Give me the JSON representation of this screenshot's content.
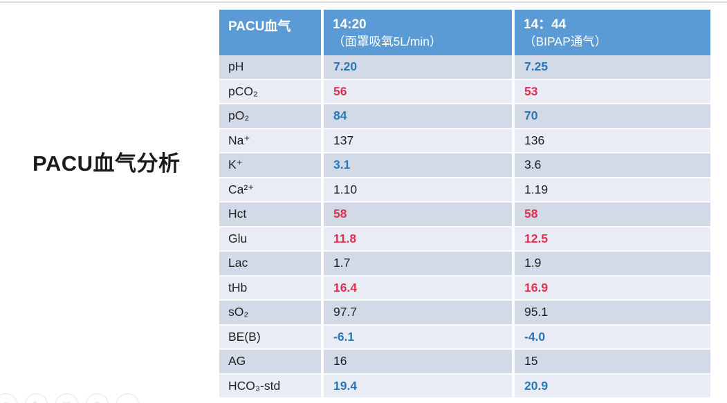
{
  "slide": {
    "title": "PACU血气分析"
  },
  "table": {
    "header": {
      "parameter": "PACU血气",
      "time1": "14:20",
      "time1_note": "（面罩吸氧5L/min）",
      "time2": "14：44",
      "time2_note": "（BIPAP通气）"
    },
    "rows": [
      {
        "label": "pH",
        "v1": "7.20",
        "c1": "blue",
        "v2": "7.25",
        "c2": "blue"
      },
      {
        "label": "pCO₂",
        "v1": "56",
        "c1": "red",
        "v2": "53",
        "c2": "red"
      },
      {
        "label": "pO₂",
        "v1": "84",
        "c1": "blue",
        "v2": "70",
        "c2": "blue"
      },
      {
        "label": "Na⁺",
        "v1": "137",
        "c1": "black",
        "v2": "136",
        "c2": "black"
      },
      {
        "label": "K⁺",
        "v1": "3.1",
        "c1": "blue",
        "v2": "3.6",
        "c2": "black"
      },
      {
        "label": "Ca²⁺",
        "v1": "1.10",
        "c1": "black",
        "v2": "1.19",
        "c2": "black"
      },
      {
        "label": "Hct",
        "v1": "58",
        "c1": "red",
        "v2": "58",
        "c2": "red"
      },
      {
        "label": "Glu",
        "v1": "11.8",
        "c1": "red",
        "v2": "12.5",
        "c2": "red"
      },
      {
        "label": "Lac",
        "v1": "1.7",
        "c1": "black",
        "v2": "1.9",
        "c2": "black"
      },
      {
        "label": "tHb",
        "v1": "16.4",
        "c1": "red",
        "v2": "16.9",
        "c2": "red"
      },
      {
        "label": "sO₂",
        "v1": "97.7",
        "c1": "black",
        "v2": "95.1",
        "c2": "black"
      },
      {
        "label": "BE(B)",
        "v1": "-6.1",
        "c1": "blue",
        "v2": "-4.0",
        "c2": "blue"
      },
      {
        "label": "AG",
        "v1": "16",
        "c1": "black",
        "v2": "15",
        "c2": "black"
      },
      {
        "label": "HCO₃-std",
        "v1": "19.4",
        "c1": "blue",
        "v2": "20.9",
        "c2": "blue"
      }
    ]
  },
  "colors": {
    "header_bg": "#5b9bd5",
    "header_text": "#ffffff",
    "row_dark": "#d2dae8",
    "row_light": "#e9ecf4",
    "value_blue": "#2878b5",
    "value_red": "#de3350",
    "value_black": "#1f1f1f"
  },
  "toolbar": {
    "icons": [
      {
        "name": "pointer-icon",
        "glyph": "◠"
      },
      {
        "name": "pen-icon",
        "glyph": "✎"
      },
      {
        "name": "whiteboard-icon",
        "glyph": "▣"
      },
      {
        "name": "zoom-icon",
        "glyph": "◎"
      },
      {
        "name": "more-icon",
        "glyph": ""
      }
    ]
  }
}
